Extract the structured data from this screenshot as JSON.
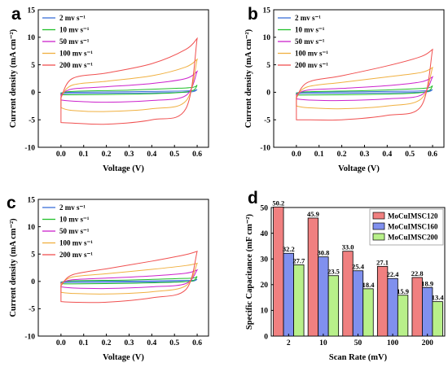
{
  "chart_data": [
    {
      "type": "line",
      "panel_label": "a",
      "xlabel": "Voltage (V)",
      "ylabel": "Current density (mA cm⁻²)",
      "xlim": [
        -0.1,
        0.65
      ],
      "ylim": [
        -10,
        15
      ],
      "x_ticks": [
        "0.0",
        "0.1",
        "0.2",
        "0.3",
        "0.4",
        "0.5",
        "0.6"
      ],
      "y_ticks": [
        "-10",
        "-5",
        "0",
        "5",
        "10",
        "15"
      ],
      "legend_placement": "top-left",
      "series": [
        {
          "name": "2 mv s⁻¹",
          "color": "#3b6fd9",
          "upper": [
            [
              0,
              -0.1
            ],
            [
              0.05,
              0.0
            ],
            [
              0.3,
              0.1
            ],
            [
              0.5,
              0.2
            ],
            [
              0.58,
              0.3
            ],
            [
              0.6,
              0.5
            ]
          ],
          "lower": [
            [
              0,
              -0.25
            ],
            [
              0.05,
              -0.2
            ],
            [
              0.3,
              -0.15
            ],
            [
              0.5,
              -0.05
            ],
            [
              0.58,
              0.1
            ],
            [
              0.6,
              0.5
            ]
          ]
        },
        {
          "name": "10 mv s⁻¹",
          "color": "#22c02a",
          "upper": [
            [
              0,
              -0.2
            ],
            [
              0.05,
              0.15
            ],
            [
              0.3,
              0.4
            ],
            [
              0.5,
              0.7
            ],
            [
              0.58,
              0.9
            ],
            [
              0.6,
              1.3
            ]
          ],
          "lower": [
            [
              0,
              -0.45
            ],
            [
              0.05,
              -0.45
            ],
            [
              0.3,
              -0.35
            ],
            [
              0.5,
              -0.1
            ],
            [
              0.58,
              0.3
            ],
            [
              0.6,
              1.3
            ]
          ]
        },
        {
          "name": "50 mv s⁻¹",
          "color": "#cc22cc",
          "upper": [
            [
              0,
              -0.4
            ],
            [
              0.05,
              0.6
            ],
            [
              0.2,
              1.0
            ],
            [
              0.4,
              1.6
            ],
            [
              0.55,
              2.5
            ],
            [
              0.6,
              3.8
            ]
          ],
          "lower": [
            [
              0,
              -1.4
            ],
            [
              0.05,
              -1.6
            ],
            [
              0.2,
              -1.8
            ],
            [
              0.4,
              -1.5
            ],
            [
              0.55,
              -0.6
            ],
            [
              0.6,
              3.8
            ]
          ]
        },
        {
          "name": "100 mv s⁻¹",
          "color": "#f0b040",
          "upper": [
            [
              0,
              -0.8
            ],
            [
              0.05,
              1.3
            ],
            [
              0.2,
              2.0
            ],
            [
              0.4,
              3.0
            ],
            [
              0.55,
              4.6
            ],
            [
              0.6,
              6.0
            ]
          ],
          "lower": [
            [
              0,
              -2.8
            ],
            [
              0.05,
              -3.3
            ],
            [
              0.2,
              -3.5
            ],
            [
              0.4,
              -3.0
            ],
            [
              0.55,
              -1.6
            ],
            [
              0.6,
              6.0
            ]
          ]
        },
        {
          "name": "200 mv s⁻¹",
          "color": "#f05050",
          "upper": [
            [
              0,
              -1.0
            ],
            [
              0.05,
              2.5
            ],
            [
              0.2,
              3.5
            ],
            [
              0.4,
              5.2
            ],
            [
              0.55,
              7.8
            ],
            [
              0.6,
              9.8
            ]
          ],
          "lower": [
            [
              0,
              -5.5
            ],
            [
              0.05,
              -5.6
            ],
            [
              0.2,
              -5.8
            ],
            [
              0.4,
              -5.0
            ],
            [
              0.55,
              -3.0
            ],
            [
              0.6,
              9.8
            ]
          ]
        }
      ]
    },
    {
      "type": "line",
      "panel_label": "b",
      "xlabel": "Voltage (V)",
      "ylabel": "Current density (mA cm⁻²)",
      "xlim": [
        -0.1,
        0.65
      ],
      "ylim": [
        -10,
        15
      ],
      "x_ticks": [
        "0.0",
        "0.1",
        "0.2",
        "0.3",
        "0.4",
        "0.5",
        "0.6"
      ],
      "y_ticks": [
        "-10",
        "-5",
        "0",
        "5",
        "10",
        "15"
      ],
      "legend_placement": "top-left",
      "series": [
        {
          "name": "2 mv s⁻¹",
          "color": "#3b6fd9",
          "upper": [
            [
              0,
              -0.1
            ],
            [
              0.05,
              0.0
            ],
            [
              0.3,
              0.1
            ],
            [
              0.5,
              0.2
            ],
            [
              0.58,
              0.3
            ],
            [
              0.6,
              0.5
            ]
          ],
          "lower": [
            [
              0,
              -0.25
            ],
            [
              0.05,
              -0.2
            ],
            [
              0.3,
              -0.15
            ],
            [
              0.5,
              -0.05
            ],
            [
              0.58,
              0.1
            ],
            [
              0.6,
              0.5
            ]
          ]
        },
        {
          "name": "10 mv s⁻¹",
          "color": "#22c02a",
          "upper": [
            [
              0,
              -0.2
            ],
            [
              0.05,
              0.1
            ],
            [
              0.3,
              0.3
            ],
            [
              0.5,
              0.6
            ],
            [
              0.58,
              0.8
            ],
            [
              0.6,
              1.2
            ]
          ],
          "lower": [
            [
              0,
              -0.5
            ],
            [
              0.05,
              -0.5
            ],
            [
              0.3,
              -0.4
            ],
            [
              0.5,
              -0.2
            ],
            [
              0.58,
              0.2
            ],
            [
              0.6,
              1.2
            ]
          ]
        },
        {
          "name": "50 mv s⁻¹",
          "color": "#cc22cc",
          "upper": [
            [
              0,
              -0.4
            ],
            [
              0.05,
              0.4
            ],
            [
              0.2,
              0.7
            ],
            [
              0.4,
              1.2
            ],
            [
              0.55,
              1.9
            ],
            [
              0.6,
              2.8
            ]
          ],
          "lower": [
            [
              0,
              -1.2
            ],
            [
              0.05,
              -1.4
            ],
            [
              0.2,
              -1.5
            ],
            [
              0.4,
              -1.2
            ],
            [
              0.55,
              -0.5
            ],
            [
              0.6,
              2.8
            ]
          ]
        },
        {
          "name": "100 mv s⁻¹",
          "color": "#f0b040",
          "upper": [
            [
              0,
              -0.7
            ],
            [
              0.05,
              1.0
            ],
            [
              0.2,
              1.8
            ],
            [
              0.4,
              2.8
            ],
            [
              0.55,
              3.6
            ],
            [
              0.6,
              4.5
            ]
          ],
          "lower": [
            [
              0,
              -2.5
            ],
            [
              0.05,
              -2.8
            ],
            [
              0.2,
              -3.0
            ],
            [
              0.4,
              -2.5
            ],
            [
              0.55,
              -1.2
            ],
            [
              0.6,
              4.5
            ]
          ]
        },
        {
          "name": "200 mv s⁻¹",
          "color": "#f05050",
          "upper": [
            [
              0,
              -1.0
            ],
            [
              0.05,
              1.8
            ],
            [
              0.2,
              3.0
            ],
            [
              0.4,
              4.8
            ],
            [
              0.55,
              6.5
            ],
            [
              0.6,
              7.8
            ]
          ],
          "lower": [
            [
              0,
              -5.0
            ],
            [
              0.05,
              -5.0
            ],
            [
              0.2,
              -5.0
            ],
            [
              0.4,
              -4.2
            ],
            [
              0.55,
              -2.5
            ],
            [
              0.6,
              7.8
            ]
          ]
        }
      ]
    },
    {
      "type": "line",
      "panel_label": "c",
      "xlabel": "Voltage (V)",
      "ylabel": "Current density (mA cm⁻²)",
      "xlim": [
        -0.1,
        0.65
      ],
      "ylim": [
        -10,
        15
      ],
      "x_ticks": [
        "0.0",
        "0.1",
        "0.2",
        "0.3",
        "0.4",
        "0.5",
        "0.6"
      ],
      "y_ticks": [
        "-10",
        "-5",
        "0",
        "5",
        "10",
        "15"
      ],
      "legend_placement": "top-left",
      "series": [
        {
          "name": "2 mv s⁻¹",
          "color": "#3b6fd9",
          "upper": [
            [
              0,
              -0.1
            ],
            [
              0.05,
              0.0
            ],
            [
              0.3,
              0.05
            ],
            [
              0.5,
              0.15
            ],
            [
              0.58,
              0.2
            ],
            [
              0.6,
              0.4
            ]
          ],
          "lower": [
            [
              0,
              -0.2
            ],
            [
              0.05,
              -0.2
            ],
            [
              0.3,
              -0.15
            ],
            [
              0.5,
              -0.05
            ],
            [
              0.58,
              0.05
            ],
            [
              0.6,
              0.4
            ]
          ]
        },
        {
          "name": "10 mv s⁻¹",
          "color": "#22c02a",
          "upper": [
            [
              0,
              -0.2
            ],
            [
              0.05,
              0.1
            ],
            [
              0.3,
              0.25
            ],
            [
              0.5,
              0.5
            ],
            [
              0.58,
              0.6
            ],
            [
              0.6,
              0.9
            ]
          ],
          "lower": [
            [
              0,
              -0.4
            ],
            [
              0.05,
              -0.45
            ],
            [
              0.3,
              -0.35
            ],
            [
              0.5,
              -0.15
            ],
            [
              0.58,
              0.1
            ],
            [
              0.6,
              0.9
            ]
          ]
        },
        {
          "name": "50 mv s⁻¹",
          "color": "#cc22cc",
          "upper": [
            [
              0,
              -0.3
            ],
            [
              0.05,
              0.3
            ],
            [
              0.2,
              0.6
            ],
            [
              0.4,
              1.0
            ],
            [
              0.55,
              1.5
            ],
            [
              0.6,
              2.1
            ]
          ],
          "lower": [
            [
              0,
              -1.0
            ],
            [
              0.05,
              -1.2
            ],
            [
              0.2,
              -1.3
            ],
            [
              0.4,
              -1.0
            ],
            [
              0.55,
              -0.4
            ],
            [
              0.6,
              2.1
            ]
          ]
        },
        {
          "name": "100 mv s⁻¹",
          "color": "#f0b040",
          "upper": [
            [
              0,
              -0.5
            ],
            [
              0.05,
              0.8
            ],
            [
              0.2,
              1.4
            ],
            [
              0.4,
              2.2
            ],
            [
              0.55,
              2.9
            ],
            [
              0.6,
              3.3
            ]
          ],
          "lower": [
            [
              0,
              -2.0
            ],
            [
              0.05,
              -2.2
            ],
            [
              0.2,
              -2.3
            ],
            [
              0.4,
              -1.9
            ],
            [
              0.55,
              -0.8
            ],
            [
              0.6,
              3.3
            ]
          ]
        },
        {
          "name": "200 mv s⁻¹",
          "color": "#f05050",
          "upper": [
            [
              0,
              -0.8
            ],
            [
              0.05,
              1.2
            ],
            [
              0.2,
              2.3
            ],
            [
              0.4,
              3.7
            ],
            [
              0.55,
              4.9
            ],
            [
              0.6,
              5.5
            ]
          ],
          "lower": [
            [
              0,
              -3.7
            ],
            [
              0.05,
              -3.8
            ],
            [
              0.2,
              -3.8
            ],
            [
              0.4,
              -3.0
            ],
            [
              0.55,
              -1.5
            ],
            [
              0.6,
              5.5
            ]
          ]
        }
      ]
    },
    {
      "type": "bar",
      "panel_label": "d",
      "xlabel": "Scan Rate (mV)",
      "ylabel": "Specific Capacitance (mF cm⁻²)",
      "categories": [
        "2",
        "10",
        "50",
        "100",
        "200"
      ],
      "ylim": [
        0,
        50
      ],
      "y_ticks": [
        "0",
        "10",
        "20",
        "30",
        "40",
        "50"
      ],
      "legend_placement": "top-right",
      "series": [
        {
          "name": "MoCuIMSC120",
          "color": "#f08080",
          "values": [
            50.2,
            45.9,
            33.0,
            27.1,
            22.8
          ],
          "labels": [
            "50.2",
            "45.9",
            "33.0",
            "27.1",
            "22.8"
          ]
        },
        {
          "name": "MoCuIMSC160",
          "color": "#8090ee",
          "values": [
            32.2,
            30.8,
            25.4,
            22.4,
            18.9
          ],
          "labels": [
            "32.2",
            "30.8",
            "25.4",
            "22.4",
            "18.9"
          ]
        },
        {
          "name": "MoCuIMSC200",
          "color": "#b8f08a",
          "values": [
            27.7,
            23.5,
            18.4,
            15.9,
            13.4
          ],
          "labels": [
            "27.7",
            "23.5",
            "18.4",
            "15.9",
            "13.4"
          ]
        }
      ]
    }
  ]
}
